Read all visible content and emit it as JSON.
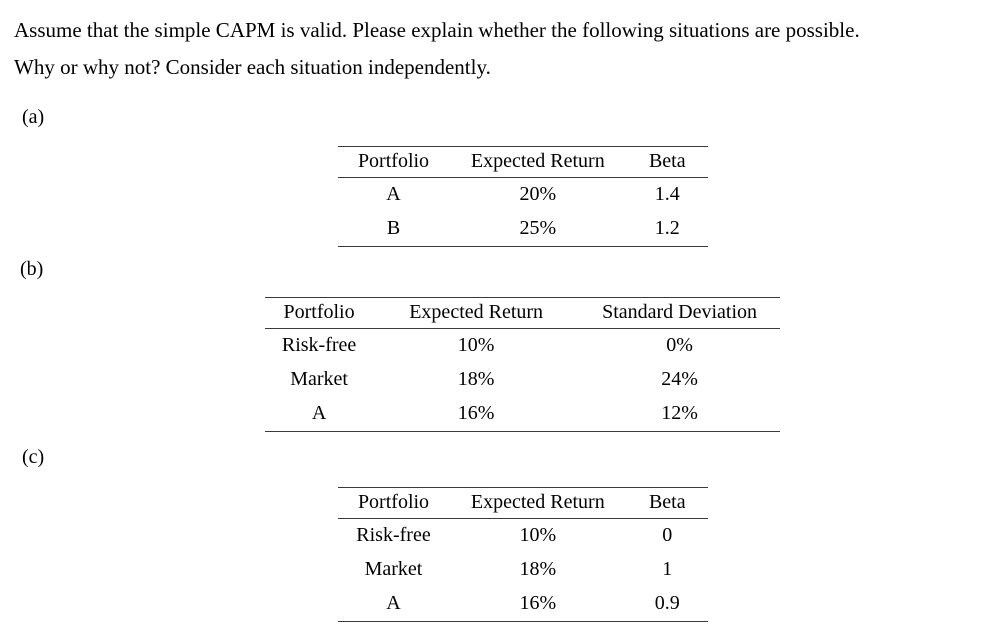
{
  "intro": {
    "line1": "Assume that the simple CAPM is valid. Please explain whether the following situations are possible.",
    "line2": "Why or why not? Consider each situation independently."
  },
  "parts": [
    {
      "label": "(a)",
      "table": {
        "headers": [
          "Portfolio",
          "Expected Return",
          "Beta"
        ],
        "rows": [
          [
            "A",
            "20%",
            "1.4"
          ],
          [
            "B",
            "25%",
            "1.2"
          ]
        ]
      }
    },
    {
      "label": "(b)",
      "table": {
        "headers": [
          "Portfolio",
          "Expected Return",
          "Standard Deviation"
        ],
        "rows": [
          [
            "Risk-free",
            "10%",
            "0%"
          ],
          [
            "Market",
            "18%",
            "24%"
          ],
          [
            "A",
            "16%",
            "12%"
          ]
        ]
      }
    },
    {
      "label": "(c)",
      "table": {
        "headers": [
          "Portfolio",
          "Expected Return",
          "Beta"
        ],
        "rows": [
          [
            "Risk-free",
            "10%",
            "0"
          ],
          [
            "Market",
            "18%",
            "1"
          ],
          [
            "A",
            "16%",
            "0.9"
          ]
        ]
      }
    }
  ]
}
